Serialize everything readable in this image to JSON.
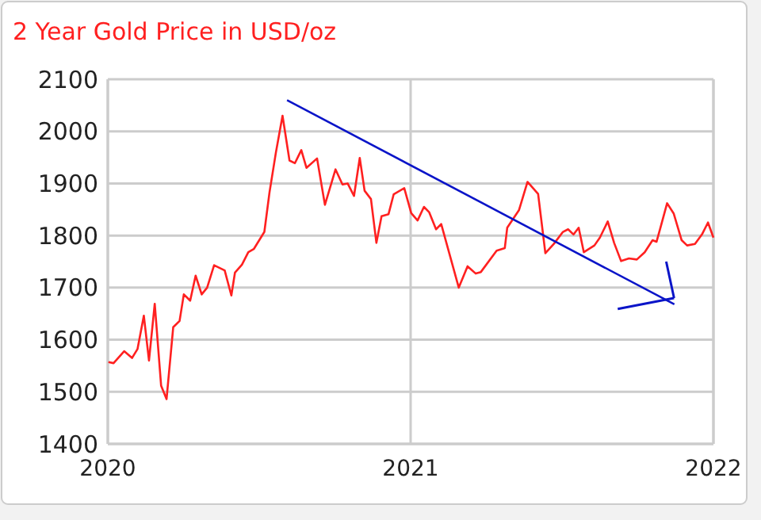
{
  "chart_data": {
    "type": "line",
    "title": "2 Year Gold Price in USD/oz",
    "x": [
      2020.002,
      2020.019,
      2020.054,
      2020.08,
      2020.098,
      2020.119,
      2020.136,
      2020.155,
      2020.176,
      2020.194,
      2020.216,
      2020.237,
      2020.251,
      2020.272,
      2020.29,
      2020.31,
      2020.328,
      2020.351,
      2020.386,
      2020.408,
      2020.42,
      2020.443,
      2020.464,
      2020.482,
      2020.517,
      2020.534,
      2020.555,
      2020.577,
      2020.6,
      2020.618,
      2020.639,
      2020.656,
      2020.691,
      2020.717,
      2020.752,
      2020.775,
      2020.792,
      2020.813,
      2020.832,
      2020.848,
      2020.869,
      2020.887,
      2020.904,
      2020.927,
      2020.944,
      2020.979,
      2021.002,
      2021.023,
      2021.044,
      2021.061,
      2021.084,
      2021.101,
      2021.159,
      2021.188,
      2021.215,
      2021.232,
      2021.284,
      2021.311,
      2021.319,
      2021.358,
      2021.386,
      2021.421,
      2021.445,
      2021.473,
      2021.503,
      2021.52,
      2021.538,
      2021.555,
      2021.572,
      2021.607,
      2021.625,
      2021.651,
      2021.672,
      2021.695,
      2021.721,
      2021.747,
      2021.773,
      2021.799,
      2021.812,
      2021.826,
      2021.847,
      2021.869,
      2021.895,
      2021.913,
      2021.939,
      2021.962,
      2021.982,
      2022.0
    ],
    "series": [
      {
        "color": "#ff2020",
        "values": [
          1557,
          1555,
          1578,
          1565,
          1582,
          1646,
          1560,
          1669,
          1512,
          1486,
          1624,
          1636,
          1687,
          1675,
          1723,
          1687,
          1700,
          1743,
          1733,
          1685,
          1729,
          1744,
          1768,
          1774,
          1807,
          1883,
          1959,
          2030,
          1944,
          1939,
          1964,
          1930,
          1948,
          1859,
          1927,
          1898,
          1900,
          1876,
          1949,
          1886,
          1870,
          1786,
          1837,
          1841,
          1879,
          1891,
          1843,
          1829,
          1855,
          1845,
          1812,
          1822,
          1700,
          1741,
          1727,
          1730,
          1771,
          1776,
          1815,
          1849,
          1903,
          1880,
          1766,
          1784,
          1807,
          1812,
          1802,
          1815,
          1768,
          1781,
          1796,
          1827,
          1786,
          1751,
          1756,
          1754,
          1768,
          1791,
          1788,
          1817,
          1862,
          1842,
          1791,
          1781,
          1784,
          1802,
          1825,
          1796
        ]
      },
      {
        "type": "line",
        "color": "#0a14c8",
        "x": [
          2020.592,
          2021.871
        ],
        "values": [
          2060,
          1668
        ]
      }
    ],
    "xlim": [
      2020,
      2022
    ],
    "xticks": [
      2020,
      2021,
      2022
    ],
    "ylim": [
      1400,
      2100
    ],
    "yticks": [
      1400,
      1500,
      1600,
      1700,
      1800,
      1900,
      2000,
      2100
    ],
    "grid": true
  }
}
